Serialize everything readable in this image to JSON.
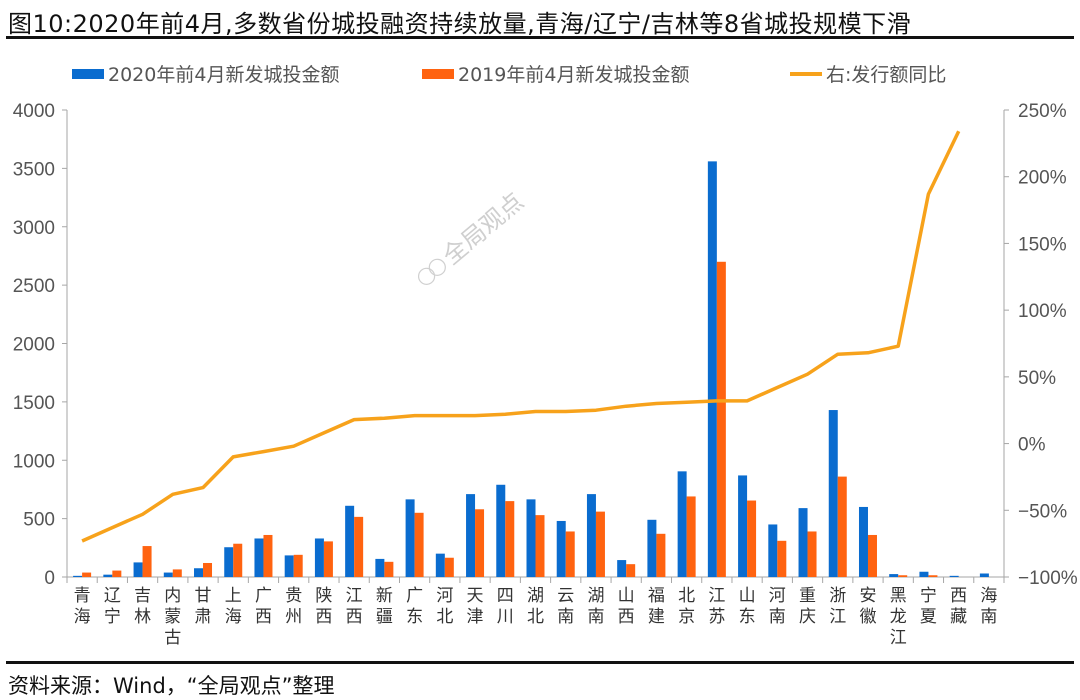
{
  "title": "图10:2020年前4月,多数省份城投融资持续放量,青海/辽宁/吉林等8省城投规模下滑",
  "source": "资料来源：Wind，“全局观点”整理",
  "watermark": "全局观点",
  "colors": {
    "series_2020": "#0a6ccf",
    "series_2019": "#ff6310",
    "yoy_line": "#f7a21b",
    "axis": "#a6a6a6"
  },
  "legend": [
    {
      "label": "2020年前4月新发城投金额",
      "type": "bar",
      "color": "#0a6ccf"
    },
    {
      "label": "2019年前4月新发城投金额",
      "type": "bar",
      "color": "#ff6310"
    },
    {
      "label": "右:发行额同比",
      "type": "line",
      "color": "#f7a21b"
    }
  ],
  "chart_data": {
    "type": "bar",
    "title": "2020年前4月,多数省份城投融资持续放量,青海/辽宁/吉林等8省城投规模下滑",
    "xlabel": "",
    "ylabel": "",
    "ylim": [
      0,
      4000
    ],
    "yticks": [
      0,
      500,
      1000,
      1500,
      2000,
      2500,
      3000,
      3500,
      4000
    ],
    "y2lim": [
      -100,
      250
    ],
    "y2ticks": [
      "-100%",
      "-50%",
      "0%",
      "50%",
      "100%",
      "150%",
      "200%",
      "250%"
    ],
    "grid": false,
    "legend_position": "top",
    "categories": [
      "青海",
      "辽宁",
      "吉林",
      "内蒙古",
      "甘肃",
      "上海",
      "广西",
      "贵州",
      "陕西",
      "江西",
      "新疆",
      "广东",
      "河北",
      "天津",
      "四川",
      "湖北",
      "云南",
      "湖南",
      "山西",
      "福建",
      "北京",
      "江苏",
      "山东",
      "河南",
      "重庆",
      "浙江",
      "安徽",
      "黑龙江",
      "宁夏",
      "西藏",
      "海南"
    ],
    "category_labels": [
      "青\n海",
      "辽\n宁",
      "吉\n林",
      "内\n蒙\n古",
      "甘\n肃",
      "上\n海",
      "广\n西",
      "贵\n州",
      "陕\n西",
      "江\n西",
      "新\n疆",
      "广\n东",
      "河\n北",
      "天\n津",
      "四\n川",
      "湖\n北",
      "云\n南",
      "湖\n南",
      "山\n西",
      "福\n建",
      "北\n京",
      "江\n苏",
      "山\n东",
      "河\n南",
      "重\n庆",
      "浙\n江",
      "安\n徽",
      "黑\n龙\n江",
      "宁\n夏",
      "西\n藏",
      "海\n南"
    ],
    "series": [
      {
        "name": "2020年前4月新发城投金额",
        "axis": "left",
        "type": "bar",
        "values": [
          10,
          20,
          125,
          38,
          75,
          255,
          330,
          185,
          330,
          610,
          155,
          665,
          200,
          710,
          790,
          665,
          480,
          710,
          145,
          490,
          905,
          3560,
          870,
          450,
          590,
          1430,
          600,
          25,
          45,
          10,
          30
        ]
      },
      {
        "name": "2019年前4月新发城投金额",
        "axis": "left",
        "type": "bar",
        "values": [
          38,
          55,
          265,
          65,
          120,
          285,
          360,
          190,
          305,
          515,
          130,
          550,
          165,
          580,
          650,
          530,
          390,
          560,
          110,
          370,
          690,
          2700,
          655,
          310,
          390,
          860,
          360,
          15,
          15,
          0,
          0
        ]
      },
      {
        "name": "右:发行额同比",
        "axis": "right",
        "type": "line",
        "unit": "%",
        "values": [
          -73,
          -63,
          -53,
          -38,
          -33,
          -10,
          -6,
          -2,
          8,
          18,
          19,
          21,
          21,
          21,
          22,
          24,
          24,
          25,
          28,
          30,
          31,
          32,
          32,
          42,
          52,
          67,
          68,
          73,
          187,
          234,
          null
        ]
      }
    ]
  }
}
